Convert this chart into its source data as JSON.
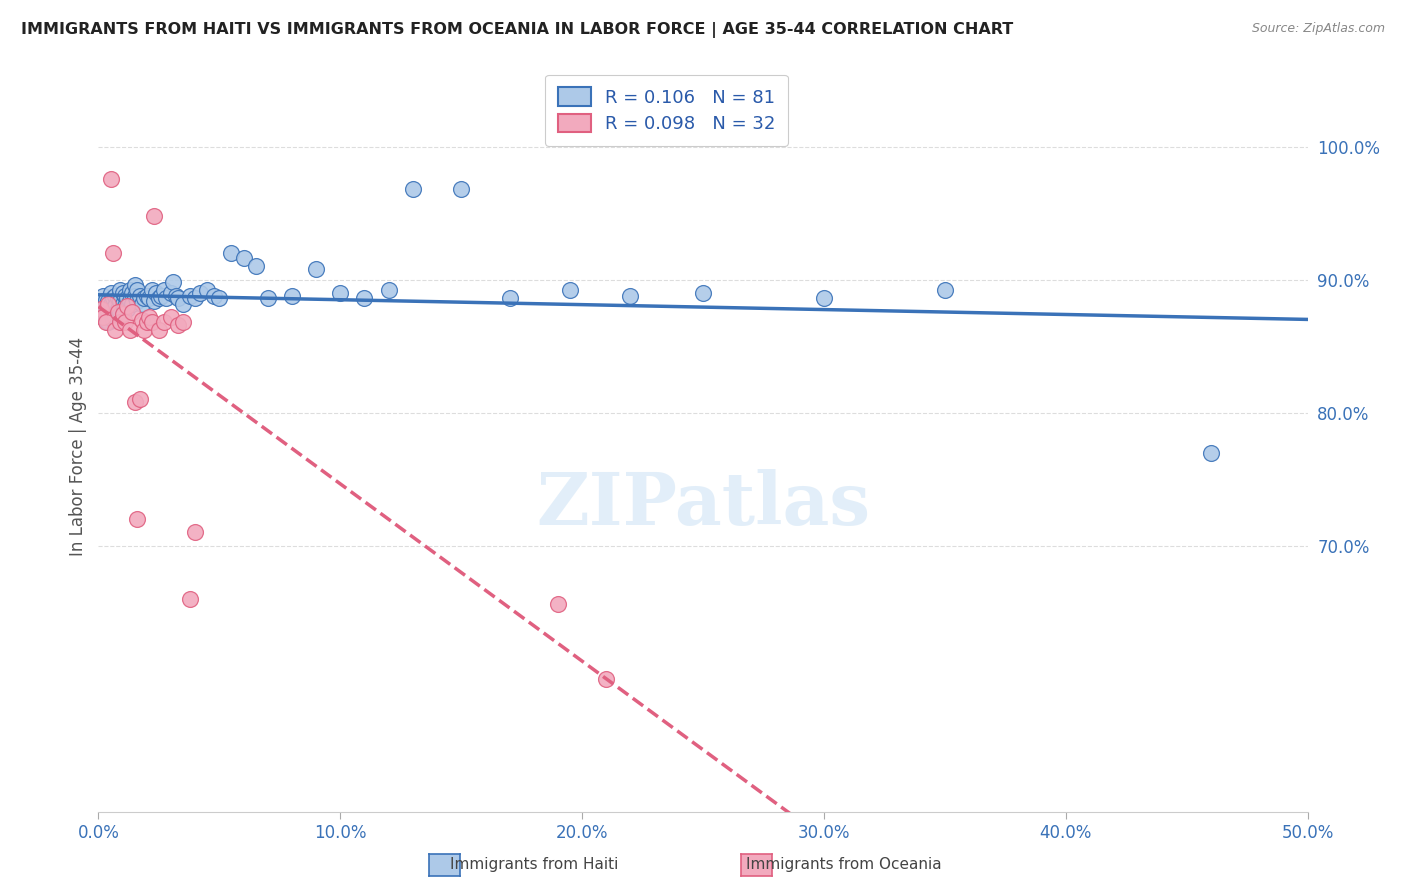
{
  "title": "IMMIGRANTS FROM HAITI VS IMMIGRANTS FROM OCEANIA IN LABOR FORCE | AGE 35-44 CORRELATION CHART",
  "source": "Source: ZipAtlas.com",
  "ylabel": "In Labor Force | Age 35-44",
  "xlim": [
    0.0,
    0.5
  ],
  "ylim": [
    0.5,
    1.05
  ],
  "xticks": [
    0.0,
    0.1,
    0.2,
    0.3,
    0.4,
    0.5
  ],
  "xticklabels": [
    "0.0%",
    "10.0%",
    "20.0%",
    "30.0%",
    "40.0%",
    "50.0%"
  ],
  "yticks": [
    0.7,
    0.8,
    0.9,
    1.0
  ],
  "yticklabels": [
    "70.0%",
    "80.0%",
    "90.0%",
    "100.0%"
  ],
  "haiti_color": "#adc9e8",
  "oceania_color": "#f2aabe",
  "trend_haiti_color": "#3a72b8",
  "trend_oceania_color": "#e06080",
  "haiti_x": [
    0.001,
    0.001,
    0.002,
    0.002,
    0.002,
    0.003,
    0.003,
    0.003,
    0.004,
    0.004,
    0.004,
    0.005,
    0.005,
    0.005,
    0.006,
    0.006,
    0.006,
    0.007,
    0.007,
    0.007,
    0.008,
    0.008,
    0.009,
    0.009,
    0.009,
    0.01,
    0.01,
    0.01,
    0.011,
    0.011,
    0.012,
    0.012,
    0.013,
    0.013,
    0.014,
    0.014,
    0.015,
    0.015,
    0.016,
    0.016,
    0.017,
    0.018,
    0.019,
    0.02,
    0.021,
    0.022,
    0.023,
    0.024,
    0.025,
    0.026,
    0.027,
    0.028,
    0.03,
    0.031,
    0.032,
    0.033,
    0.035,
    0.038,
    0.04,
    0.042,
    0.045,
    0.048,
    0.05,
    0.055,
    0.06,
    0.065,
    0.07,
    0.08,
    0.09,
    0.1,
    0.11,
    0.12,
    0.13,
    0.15,
    0.17,
    0.195,
    0.22,
    0.25,
    0.3,
    0.35,
    0.46
  ],
  "haiti_y": [
    0.882,
    0.876,
    0.888,
    0.878,
    0.872,
    0.885,
    0.878,
    0.87,
    0.884,
    0.876,
    0.868,
    0.89,
    0.882,
    0.874,
    0.886,
    0.878,
    0.87,
    0.888,
    0.88,
    0.872,
    0.886,
    0.878,
    0.892,
    0.884,
    0.876,
    0.89,
    0.882,
    0.874,
    0.888,
    0.88,
    0.886,
    0.878,
    0.892,
    0.884,
    0.89,
    0.882,
    0.896,
    0.888,
    0.892,
    0.884,
    0.888,
    0.882,
    0.886,
    0.888,
    0.886,
    0.892,
    0.884,
    0.89,
    0.886,
    0.888,
    0.892,
    0.886,
    0.89,
    0.898,
    0.888,
    0.886,
    0.882,
    0.888,
    0.886,
    0.89,
    0.892,
    0.888,
    0.886,
    0.92,
    0.916,
    0.91,
    0.886,
    0.888,
    0.908,
    0.89,
    0.886,
    0.892,
    0.968,
    0.968,
    0.886,
    0.892,
    0.888,
    0.89,
    0.886,
    0.892,
    0.77
  ],
  "oceania_x": [
    0.001,
    0.002,
    0.003,
    0.004,
    0.005,
    0.006,
    0.007,
    0.008,
    0.009,
    0.01,
    0.011,
    0.012,
    0.013,
    0.014,
    0.015,
    0.016,
    0.017,
    0.018,
    0.019,
    0.02,
    0.021,
    0.022,
    0.023,
    0.025,
    0.027,
    0.03,
    0.033,
    0.035,
    0.038,
    0.04,
    0.19,
    0.21
  ],
  "oceania_y": [
    0.878,
    0.872,
    0.868,
    0.882,
    0.976,
    0.92,
    0.862,
    0.876,
    0.868,
    0.874,
    0.868,
    0.88,
    0.862,
    0.876,
    0.808,
    0.72,
    0.81,
    0.87,
    0.862,
    0.868,
    0.872,
    0.868,
    0.948,
    0.862,
    0.868,
    0.872,
    0.866,
    0.868,
    0.66,
    0.71,
    0.656,
    0.6
  ],
  "watermark": "ZIPatlas",
  "background_color": "#ffffff",
  "grid_color": "#dddddd",
  "legend_label_haiti": "R = 0.106   N = 81",
  "legend_label_oceania": "R = 0.098   N = 32",
  "bottom_label_haiti": "Immigrants from Haiti",
  "bottom_label_oceania": "Immigrants from Oceania"
}
